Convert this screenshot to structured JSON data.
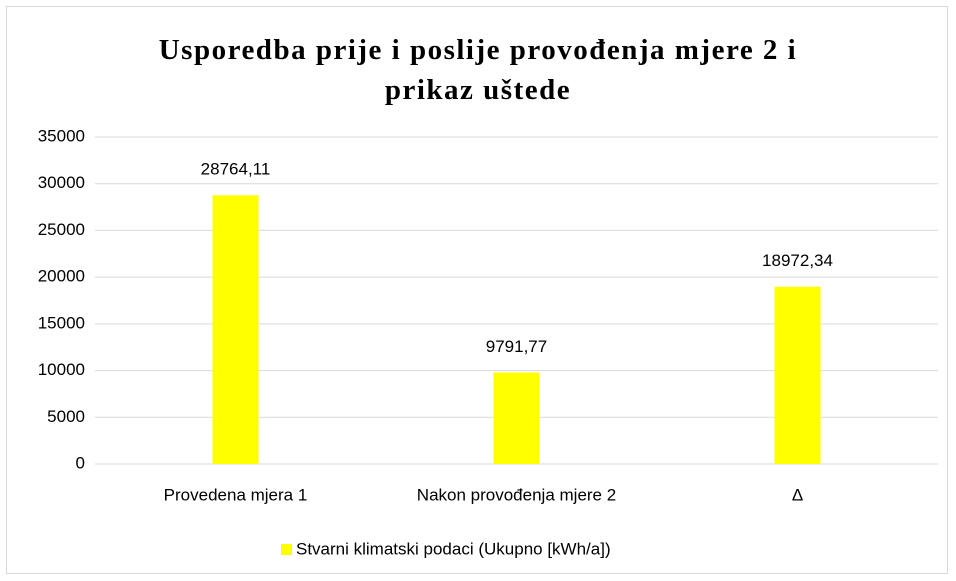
{
  "chart_data": {
    "type": "bar",
    "title": "Usporedba prije i poslije provođenja mjere 2 i prikaz uštede",
    "categories": [
      "Provedena mjera 1",
      "Nakon provođenja mjere 2",
      "Δ"
    ],
    "series": [
      {
        "name": "Stvarni klimatski podaci (Ukupno [kWh/a])",
        "color": "#ffff00",
        "values": [
          28764.11,
          9791.77,
          18972.34
        ],
        "value_labels": [
          "28764,11",
          "9791,77",
          "18972,34"
        ]
      }
    ],
    "ylim": [
      0,
      35000
    ],
    "yticks": [
      0,
      5000,
      10000,
      15000,
      20000,
      25000,
      30000,
      35000
    ],
    "grid": true,
    "legend": "bottom"
  }
}
